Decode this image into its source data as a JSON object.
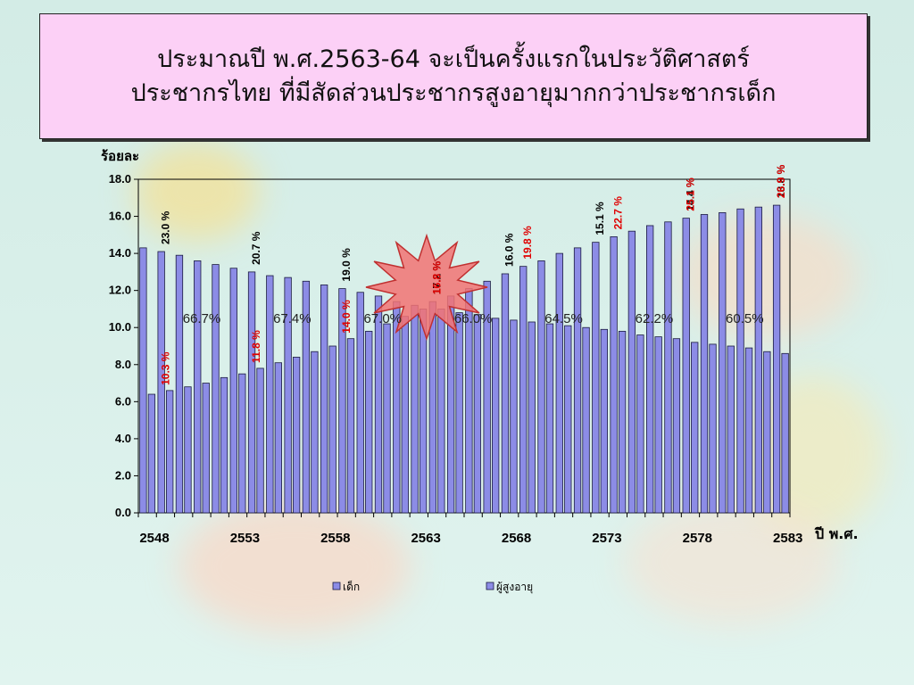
{
  "title": {
    "line1": "ประมาณปี พ.ศ.2563-64 จะเป็นครั้งแรกในประวัติศาสตร์",
    "line2": "ประชากรไทย ที่มีสัดส่วนประชากรสูงอายุมากกว่าประชากรเด็ก"
  },
  "colors": {
    "title_bg": "#fcd0f6",
    "bar_fill": "#8c8ce6",
    "bar_stroke": "#1a1a40",
    "black_label": "#000000",
    "red_label": "#e00000",
    "star_fill": "#f27373"
  },
  "chart_data": {
    "type": "bar",
    "ylabel": "ร้อยละ",
    "xlabel": "ปี พ.ศ.",
    "ylim": [
      0,
      18
    ],
    "yticks": [
      "0.0",
      "2.0",
      "4.0",
      "6.0",
      "8.0",
      "10.0",
      "12.0",
      "14.0",
      "16.0",
      "18.0"
    ],
    "xticks": [
      "2548",
      "2553",
      "2558",
      "2563",
      "2568",
      "2573",
      "2578",
      "2583"
    ],
    "x": [
      2548,
      2549,
      2550,
      2551,
      2552,
      2553,
      2554,
      2555,
      2556,
      2557,
      2558,
      2559,
      2560,
      2561,
      2562,
      2563,
      2564,
      2565,
      2566,
      2567,
      2568,
      2569,
      2570,
      2571,
      2572,
      2573,
      2574,
      2575,
      2576,
      2577,
      2578,
      2579,
      2580,
      2581,
      2582,
      2583
    ],
    "series": [
      {
        "name": "เด็ก",
        "values": [
          14.3,
          14.1,
          13.9,
          13.6,
          13.4,
          13.2,
          13.0,
          12.8,
          12.7,
          12.5,
          12.3,
          12.1,
          11.9,
          11.7,
          11.4,
          11.2,
          11.4,
          11.7,
          12.1,
          12.5,
          12.9,
          13.3,
          13.6,
          14.0,
          14.3,
          14.6,
          14.9,
          15.2,
          15.5,
          15.7,
          15.9,
          16.1,
          16.2,
          16.4,
          16.5,
          16.6
        ]
      },
      {
        "name": "ผู้สูงอายุ",
        "values": [
          6.4,
          6.6,
          6.8,
          7.0,
          7.3,
          7.5,
          7.8,
          8.1,
          8.4,
          8.7,
          9.0,
          9.4,
          9.8,
          10.2,
          10.6,
          11.0,
          11.0,
          10.8,
          10.7,
          10.5,
          10.4,
          10.3,
          10.2,
          10.1,
          10.0,
          9.9,
          9.8,
          9.6,
          9.5,
          9.4,
          9.2,
          9.1,
          9.0,
          8.9,
          8.7,
          8.6
        ]
      }
    ],
    "child_pct_labels": [
      {
        "year": 2549,
        "text": "23.0 %"
      },
      {
        "year": 2554,
        "text": "20.7 %"
      },
      {
        "year": 2559,
        "text": "19.0 %"
      },
      {
        "year": 2564,
        "text": "17.2 %"
      },
      {
        "year": 2568,
        "text": "16.0 %"
      },
      {
        "year": 2573,
        "text": "15.1 %"
      },
      {
        "year": 2578,
        "text": "14.4 %"
      },
      {
        "year": 2583,
        "text": "13.8 %"
      }
    ],
    "elderly_pct_labels": [
      {
        "year": 2549,
        "text": "10.3 %"
      },
      {
        "year": 2554,
        "text": "11.8 %"
      },
      {
        "year": 2559,
        "text": "14.0 %"
      },
      {
        "year": 2564,
        "text": "16.8 %"
      },
      {
        "year": 2569,
        "text": "19.8 %"
      },
      {
        "year": 2574,
        "text": "22.7 %"
      },
      {
        "year": 2578,
        "text": "25.1 %"
      },
      {
        "year": 2583,
        "text": "26.9 %"
      }
    ],
    "working_age_labels": [
      {
        "year": 2551,
        "text": "66.7%"
      },
      {
        "year": 2556,
        "text": "67.4%"
      },
      {
        "year": 2561,
        "text": "67.0%"
      },
      {
        "year": 2566,
        "text": "66.0%"
      },
      {
        "year": 2571,
        "text": "64.5%"
      },
      {
        "year": 2576,
        "text": "62.2%"
      },
      {
        "year": 2581,
        "text": "60.5%"
      }
    ]
  }
}
